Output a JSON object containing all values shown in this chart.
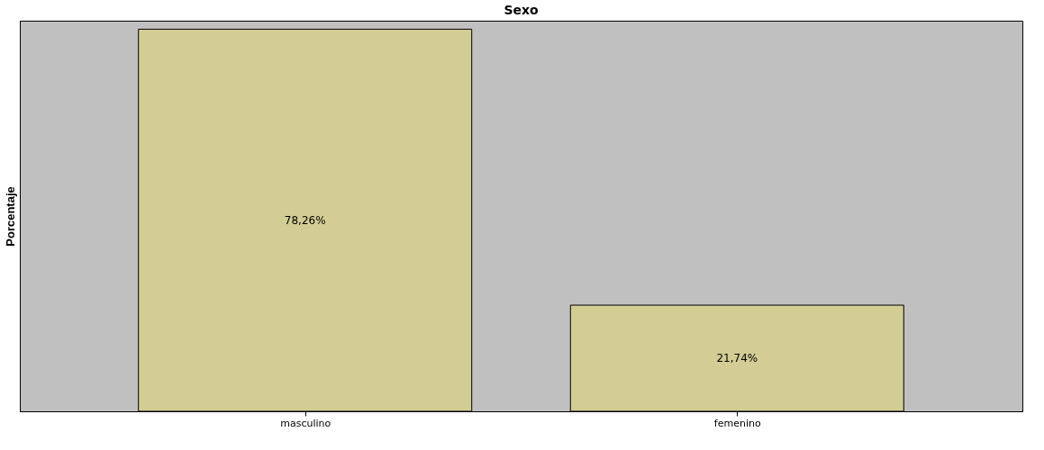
{
  "chart_data": {
    "type": "bar",
    "title": "Sexo",
    "ylabel": "Porcentaje",
    "categories": [
      "masculino",
      "femenino"
    ],
    "values": [
      78.26,
      21.74
    ],
    "value_labels": [
      "78,26%",
      "21,74%"
    ],
    "color": "#d3cc94",
    "tick_labels": "x",
    "grid": false
  }
}
